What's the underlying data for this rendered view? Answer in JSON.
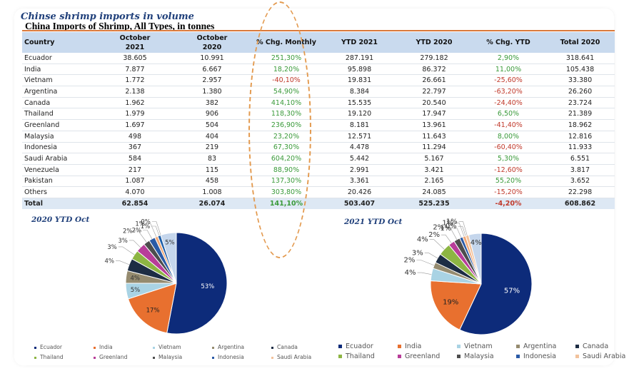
{
  "page_title": "Chinse shrimp imports in volume",
  "table": {
    "title": "China Imports of Shrimp, All Types, in tonnes",
    "headers": [
      "Country",
      "October\n2021",
      "October\n2020",
      "% Chg. Monthly",
      "YTD 2021",
      "YTD 2020",
      "% Chg. YTD",
      "Total 2020"
    ],
    "rows": [
      [
        "Ecuador",
        "38.605",
        "10.991",
        "251,30%",
        "287.191",
        "279.182",
        "2,90%",
        "318.641"
      ],
      [
        "India",
        "7.877",
        "6.667",
        "18,20%",
        "95.898",
        "86.372",
        "11,00%",
        "105.438"
      ],
      [
        "Vietnam",
        "1.772",
        "2.957",
        "-40,10%",
        "19.831",
        "26.661",
        "-25,60%",
        "33.380"
      ],
      [
        "Argentina",
        "2.138",
        "1.380",
        "54,90%",
        "8.384",
        "22.797",
        "-63,20%",
        "26.260"
      ],
      [
        "Canada",
        "1.962",
        "382",
        "414,10%",
        "15.535",
        "20.540",
        "-24,40%",
        "23.724"
      ],
      [
        "Thailand",
        "1.979",
        "906",
        "118,30%",
        "19.120",
        "17.947",
        "6,50%",
        "21.389"
      ],
      [
        "Greenland",
        "1.697",
        "504",
        "236,90%",
        "8.181",
        "13.961",
        "-41,40%",
        "18.962"
      ],
      [
        "Malaysia",
        "498",
        "404",
        "23,20%",
        "12.571",
        "11.643",
        "8,00%",
        "12.816"
      ],
      [
        "Indonesia",
        "367",
        "219",
        "67,30%",
        "4.478",
        "11.294",
        "-60,40%",
        "11.933"
      ],
      [
        "Saudi Arabia",
        "584",
        "83",
        "604,20%",
        "5.442",
        "5.167",
        "5,30%",
        "6.551"
      ],
      [
        "Venezuela",
        "217",
        "115",
        "88,90%",
        "2.991",
        "3.421",
        "-12,60%",
        "3.817"
      ],
      [
        "Pakistan",
        "1.087",
        "458",
        "137,30%",
        "3.361",
        "2.165",
        "55,20%",
        "3.652"
      ],
      [
        "Others",
        "4.070",
        "1.008",
        "303,80%",
        "20.426",
        "24.085",
        "-15,20%",
        "22.298"
      ]
    ],
    "total": [
      "Total",
      "62.854",
      "26.074",
      "141,10%",
      "503.407",
      "525.235",
      "-4,20%",
      "608.862"
    ]
  },
  "chart_data": [
    {
      "type": "pie",
      "title": "2020 YTD Oct",
      "values": [
        53,
        17,
        5,
        4,
        4,
        3,
        3,
        2,
        2,
        1,
        1,
        0,
        5
      ],
      "labels": [
        "53%",
        "17%",
        "5%",
        "4%",
        "4%",
        "3%",
        "3%",
        "2%",
        "2%",
        "1%",
        "1%",
        "0%",
        "5%"
      ],
      "colors": [
        "#0d2b7a",
        "#e8702f",
        "#a9d3e4",
        "#958b6f",
        "#1d2d44",
        "#8db543",
        "#b83d99",
        "#4d4d4d",
        "#2a5aa6",
        "#f0a978",
        "#1f5fa8",
        "#f2c29c",
        "#c5d6ec"
      ],
      "legend": [
        "Ecuador",
        "India",
        "Vietnam",
        "Argentina",
        "Canada",
        "Thailand",
        "Greenland",
        "Malaysia",
        "Indonesia",
        "Saudi Arabia"
      ],
      "legend_colors": [
        "#0d2b7a",
        "#e8702f",
        "#a9d3e4",
        "#958b6f",
        "#1d2d44",
        "#8db543",
        "#b83d99",
        "#4d4d4d",
        "#2a5aa6",
        "#f2c29c"
      ]
    },
    {
      "type": "pie",
      "title": "2021 YTD Oct",
      "values": [
        57,
        19,
        4,
        2,
        3,
        4,
        2,
        2,
        1,
        1,
        0,
        1,
        4
      ],
      "labels": [
        "57%",
        "19%",
        "4%",
        "2%",
        "3%",
        "4%",
        "2%",
        "2%",
        "1%",
        "1%",
        "0%",
        "1%",
        "4%"
      ],
      "colors": [
        "#0d2b7a",
        "#e8702f",
        "#a9d3e4",
        "#958b6f",
        "#1d2d44",
        "#8db543",
        "#b83d99",
        "#4d4d4d",
        "#2a5aa6",
        "#f0a978",
        "#1f5fa8",
        "#f2c29c",
        "#c5d6ec"
      ],
      "legend": [
        "Ecuador",
        "India",
        "Vietnam",
        "Argentina",
        "Canada",
        "Thailand",
        "Greenland",
        "Malaysia",
        "Indonesia",
        "Saudi Arabia"
      ],
      "legend_colors": [
        "#0d2b7a",
        "#e8702f",
        "#a9d3e4",
        "#958b6f",
        "#1d2d44",
        "#8db543",
        "#b83d99",
        "#4d4d4d",
        "#2a5aa6",
        "#f2c29c"
      ]
    }
  ]
}
